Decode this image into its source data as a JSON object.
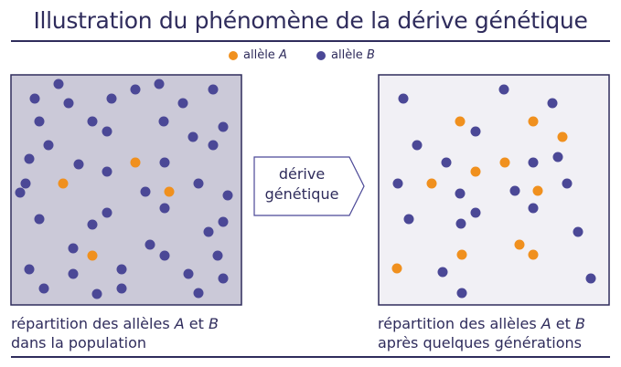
{
  "title": "Illustration du phénomène de la dérive génétique",
  "legend": {
    "allele_a": {
      "prefix": "allèle ",
      "letter": "A",
      "color": "#f0901e"
    },
    "allele_b": {
      "prefix": "allèle ",
      "letter": "B",
      "color": "#4b4896"
    }
  },
  "arrow": {
    "line1": "dérive",
    "line2": "génétique"
  },
  "left_panel": {
    "background": "#cbc9d8",
    "caption_line1_prefix": "répartition des allèles ",
    "caption_letter_a": "A",
    "caption_et": " et ",
    "caption_letter_b": "B",
    "caption_line2": "dans la population"
  },
  "right_panel": {
    "background": "#f1f0f5",
    "caption_line1_prefix": "répartition des allèles ",
    "caption_letter_a": "A",
    "caption_et": " et ",
    "caption_letter_b": "B",
    "caption_line2": "après quelques générations"
  }
}
